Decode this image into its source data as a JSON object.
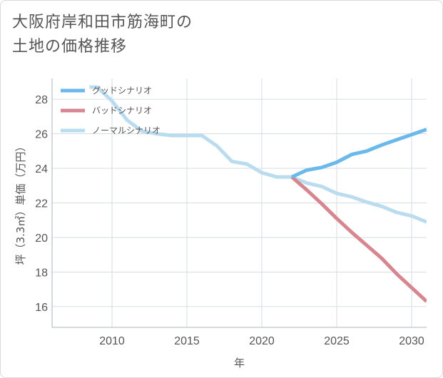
{
  "title": {
    "line1": "大阪府岸和田市筋海町の",
    "line2": "土地の価格推移"
  },
  "chart_data": {
    "type": "line",
    "xlabel": "年",
    "ylabel": "坪（3.3㎡）単価（万円）",
    "xlim": [
      2006,
      2031
    ],
    "ylim": [
      14.8,
      29.2
    ],
    "x_ticks": [
      2010,
      2015,
      2020,
      2025,
      2030
    ],
    "y_ticks": [
      16,
      18,
      20,
      22,
      24,
      26,
      28
    ],
    "grid": true,
    "legend_position": "top-left",
    "series": [
      {
        "name": "グッドシナリオ",
        "color": "#6bb8ea",
        "x": [
          2022,
          2023,
          2024,
          2025,
          2026,
          2027,
          2028,
          2029,
          2030,
          2031
        ],
        "y": [
          23.5,
          23.9,
          24.05,
          24.35,
          24.8,
          25.0,
          25.35,
          25.65,
          25.95,
          26.25
        ]
      },
      {
        "name": "バッドシナリオ",
        "color": "#d7868f",
        "x": [
          2022,
          2023,
          2024,
          2025,
          2026,
          2027,
          2028,
          2029,
          2030,
          2031
        ],
        "y": [
          23.5,
          22.75,
          21.95,
          21.1,
          20.3,
          19.55,
          18.8,
          17.9,
          17.1,
          16.3
        ]
      },
      {
        "name": "ノーマルシナリオ",
        "color": "#b9dcef",
        "x": [
          2008.5,
          2009,
          2010,
          2011,
          2012,
          2013,
          2014,
          2015,
          2016,
          2017,
          2018,
          2019,
          2020,
          2021,
          2022,
          2023,
          2024,
          2025,
          2026,
          2027,
          2028,
          2029,
          2030,
          2031
        ],
        "y": [
          28.7,
          28.7,
          27.9,
          26.8,
          26.15,
          26.0,
          25.9,
          25.9,
          25.9,
          25.3,
          24.4,
          24.25,
          23.75,
          23.5,
          23.5,
          23.15,
          22.95,
          22.55,
          22.35,
          22.05,
          21.8,
          21.45,
          21.25,
          20.9
        ]
      }
    ]
  }
}
